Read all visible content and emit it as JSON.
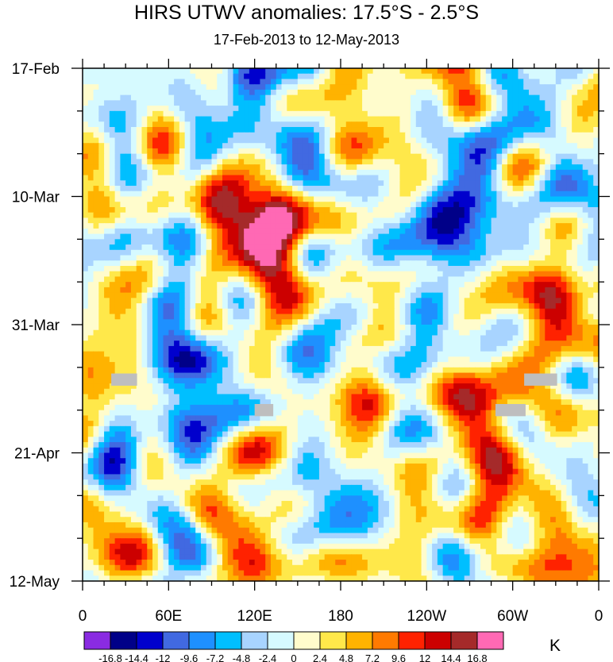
{
  "chart_data": {
    "type": "heatmap",
    "title": "HIRS UTWV anomalies: 17.5°S - 2.5°S",
    "subtitle": "17-Feb-2013 to 12-May-2013",
    "x_ticks": [
      {
        "label": "0",
        "lon": 0
      },
      {
        "label": "60E",
        "lon": 60
      },
      {
        "label": "120E",
        "lon": 120
      },
      {
        "label": "180",
        "lon": 180
      },
      {
        "label": "120W",
        "lon": 240
      },
      {
        "label": "60W",
        "lon": 300
      },
      {
        "label": "0",
        "lon": 360
      }
    ],
    "x_range": [
      0,
      360
    ],
    "y_ticks": [
      {
        "label": "17-Feb",
        "day": 0
      },
      {
        "label": "10-Mar",
        "day": 21
      },
      {
        "label": "31-Mar",
        "day": 42
      },
      {
        "label": "21-Apr",
        "day": 63
      },
      {
        "label": "12-May",
        "day": 84
      }
    ],
    "y_range": [
      0,
      84
    ],
    "colorbar": {
      "unit": "K",
      "levels": [
        "-16.8",
        "-14.4",
        "-12",
        "-9.6",
        "-7.2",
        "-4.8",
        "-2.4",
        "0",
        "2.4",
        "4.8",
        "7.2",
        "9.6",
        "12",
        "14.4",
        "16.8"
      ],
      "colors": [
        "#8a2be2",
        "#000088",
        "#0000cd",
        "#4169e1",
        "#1e90ff",
        "#00bfff",
        "#a8d4ff",
        "#d6faff",
        "#fffccc",
        "#ffe84a",
        "#ffb300",
        "#ff7a00",
        "#ff2200",
        "#cc0000",
        "#a52a2a",
        "#ff69b4"
      ]
    },
    "missing_color": "#bebebe",
    "missing_blocks": [
      {
        "lon": [
          20,
          38
        ],
        "day": [
          50,
          52
        ]
      },
      {
        "lon": [
          120,
          133
        ],
        "day": [
          55,
          57
        ]
      },
      {
        "lon": [
          288,
          309
        ],
        "day": [
          55,
          57
        ]
      },
      {
        "lon": [
          308,
          331
        ],
        "day": [
          50,
          52
        ]
      }
    ],
    "hotspots": [
      {
        "lon": 125,
        "day": 30,
        "v": 9.0,
        "r": 0.07
      },
      {
        "lon": 132,
        "day": 27,
        "v": 10.0,
        "r": 0.05
      },
      {
        "lon": 100,
        "day": 75,
        "v": 11.0,
        "r": 0.06
      },
      {
        "lon": 290,
        "day": 66,
        "v": 12.0,
        "r": 0.05
      },
      {
        "lon": 196,
        "day": 53,
        "v": 9.0,
        "r": 0.04
      },
      {
        "lon": 270,
        "day": 53,
        "v": 10.0,
        "r": 0.04
      },
      {
        "lon": 325,
        "day": 43,
        "v": 9.0,
        "r": 0.05
      },
      {
        "lon": 195,
        "day": 10,
        "v": 9.0,
        "r": 0.04
      },
      {
        "lon": 260,
        "day": 1,
        "v": 8.0,
        "r": 0.05
      },
      {
        "lon": 28,
        "day": 44,
        "v": 10.0,
        "r": 0.04
      },
      {
        "lon": 138,
        "day": 58,
        "v": 7.0,
        "r": 0.04
      },
      {
        "lon": 340,
        "day": 82,
        "v": 9.0,
        "r": 0.04
      },
      {
        "lon": 100,
        "day": 18,
        "v": 8.0,
        "r": 0.04
      },
      {
        "lon": 20,
        "day": 80,
        "v": 8.0,
        "r": 0.05
      },
      {
        "lon": 330,
        "day": 35,
        "v": 8.0,
        "r": 0.04
      },
      {
        "lon": 85,
        "day": 55,
        "v": -12.0,
        "r": 0.05
      },
      {
        "lon": 255,
        "day": 25,
        "v": -12.0,
        "r": 0.05
      },
      {
        "lon": 280,
        "day": 13,
        "v": -10.0,
        "r": 0.04
      },
      {
        "lon": 75,
        "day": 78,
        "v": -13.0,
        "r": 0.04
      },
      {
        "lon": 60,
        "day": 42,
        "v": -10.0,
        "r": 0.05
      },
      {
        "lon": 335,
        "day": 19,
        "v": -8.0,
        "r": 0.04
      },
      {
        "lon": 155,
        "day": 15,
        "v": -7.0,
        "r": 0.05
      },
      {
        "lon": 165,
        "day": 48,
        "v": -8.0,
        "r": 0.04
      },
      {
        "lon": 110,
        "day": 5,
        "v": -8.0,
        "r": 0.05
      },
      {
        "lon": 235,
        "day": 40,
        "v": -7.0,
        "r": 0.04
      },
      {
        "lon": 160,
        "day": 65,
        "v": -8.0,
        "r": 0.04
      },
      {
        "lon": 25,
        "day": 70,
        "v": -6.0,
        "r": 0.04
      }
    ]
  }
}
